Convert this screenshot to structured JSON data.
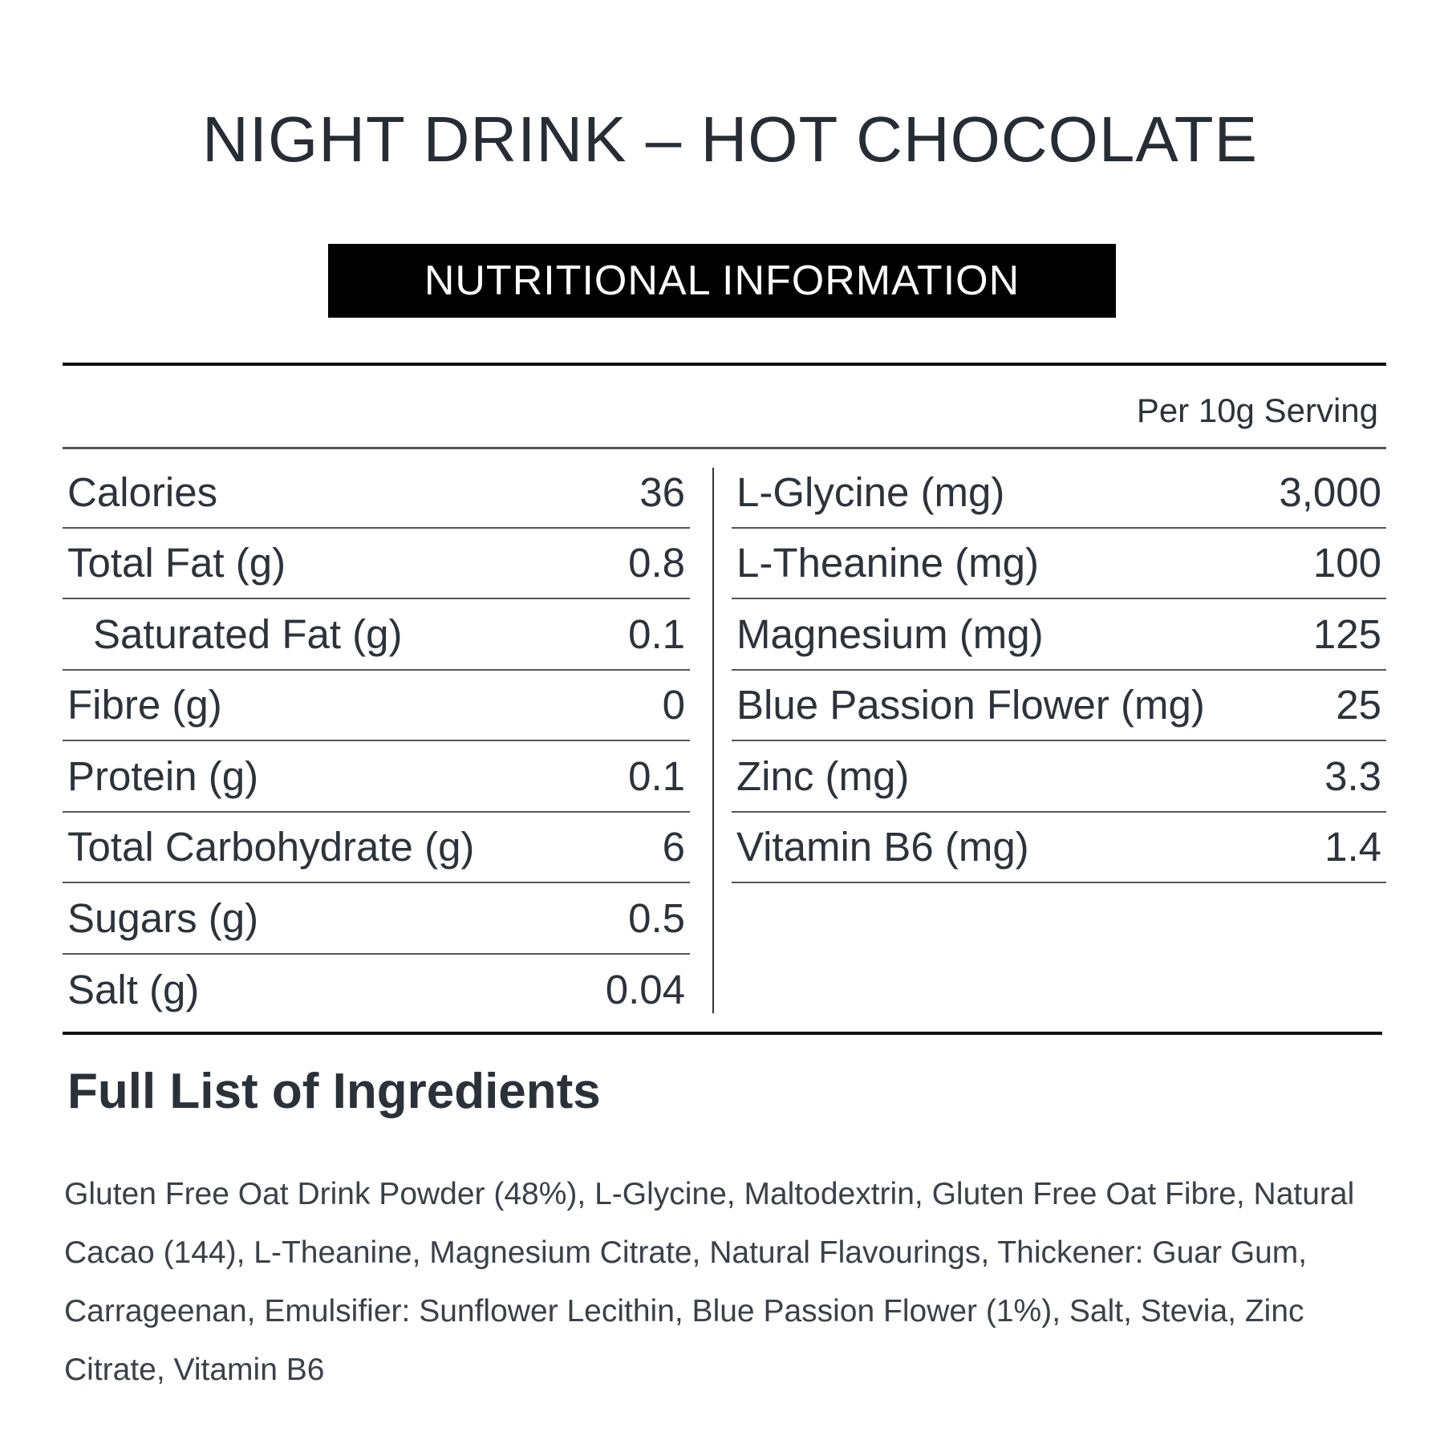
{
  "title": "NIGHT DRINK – HOT CHOCOLATE",
  "banner": "NUTRITIONAL INFORMATION",
  "serving": "Per 10g Serving",
  "left_rows": [
    {
      "label": "Calories",
      "value": "36"
    },
    {
      "label": "Total Fat (g)",
      "value": "0.8"
    },
    {
      "label": "Saturated Fat (g)",
      "value": "0.1"
    },
    {
      "label": "Fibre (g)",
      "value": "0"
    },
    {
      "label": "Protein (g)",
      "value": "0.1"
    },
    {
      "label": "Total Carbohydrate (g)",
      "value": "6"
    },
    {
      "label": "Sugars (g)",
      "value": "0.5"
    },
    {
      "label": "Salt (g)",
      "value": "0.04"
    }
  ],
  "right_rows": [
    {
      "label": "L-Glycine (mg)",
      "value": "3,000"
    },
    {
      "label": "L-Theanine (mg)",
      "value": "100"
    },
    {
      "label": "Magnesium (mg)",
      "value": "125"
    },
    {
      "label": "Blue Passion Flower (mg)",
      "value": "25"
    },
    {
      "label": "Zinc (mg)",
      "value": "3.3"
    },
    {
      "label": "Vitamin B6 (mg)",
      "value": "1.4"
    }
  ],
  "ingredients_heading": "Full List of Ingredients",
  "ingredients": "Gluten Free Oat Drink Powder (48%), L-Glycine, Maltodextrin, Gluten Free Oat Fibre, Natural Cacao (144), L-Theanine, Magnesium Citrate, Natural Flavourings, Thickener: Guar Gum, Carrageenan, Emulsifier: Sunflower Lecithin, Blue Passion Flower (1%), Salt, Stevia, Zinc Citrate, Vitamin B6"
}
